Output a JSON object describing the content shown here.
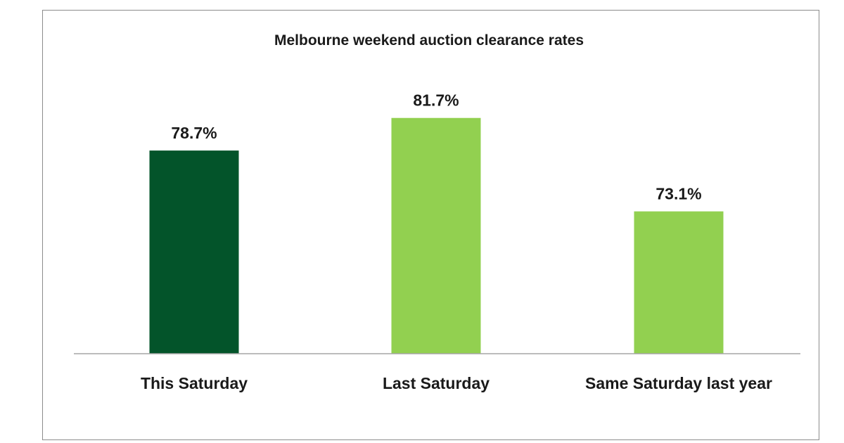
{
  "chart_data": {
    "type": "bar",
    "title": "Melbourne weekend auction clearance rates",
    "categories": [
      "This Saturday",
      "Last Saturday",
      "Same Saturday last year"
    ],
    "values": [
      78.7,
      81.7,
      73.1
    ],
    "value_labels": [
      "78.7%",
      "81.7%",
      "73.1%"
    ],
    "colors": [
      "#03542a",
      "#92d050",
      "#92d050"
    ],
    "xlabel": "",
    "ylabel": "",
    "ylim": [
      0,
      100
    ],
    "grid": false,
    "legend": "none"
  }
}
